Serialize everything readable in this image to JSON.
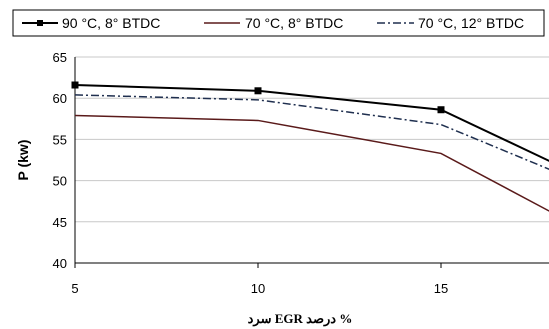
{
  "chart_data": {
    "type": "line",
    "x": [
      5,
      10,
      15,
      18
    ],
    "xticks": [
      "5",
      "10",
      "15"
    ],
    "yticks": [
      "40",
      "45",
      "50",
      "55",
      "60",
      "65"
    ],
    "xlim": [
      5,
      18
    ],
    "ylim": [
      40,
      65
    ],
    "ylabel": "P (kw)",
    "xlabel": "% درصد EGR سرد",
    "grid": "horizontal",
    "legend_position": "top",
    "series": [
      {
        "name": "90 °C, 8° BTDC",
        "values": [
          61.6,
          60.9,
          58.6,
          52.3
        ],
        "color": "#000000",
        "style": "solid-square-markers"
      },
      {
        "name": "70 °C, 8° BTDC",
        "values": [
          57.9,
          57.3,
          53.3,
          46.2
        ],
        "color": "#5a1a1a",
        "style": "solid"
      },
      {
        "name": "70 °C, 12° BTDC",
        "values": [
          60.4,
          59.8,
          56.8,
          51.3
        ],
        "color": "#1f2f4f",
        "style": "dash-dot"
      }
    ]
  }
}
